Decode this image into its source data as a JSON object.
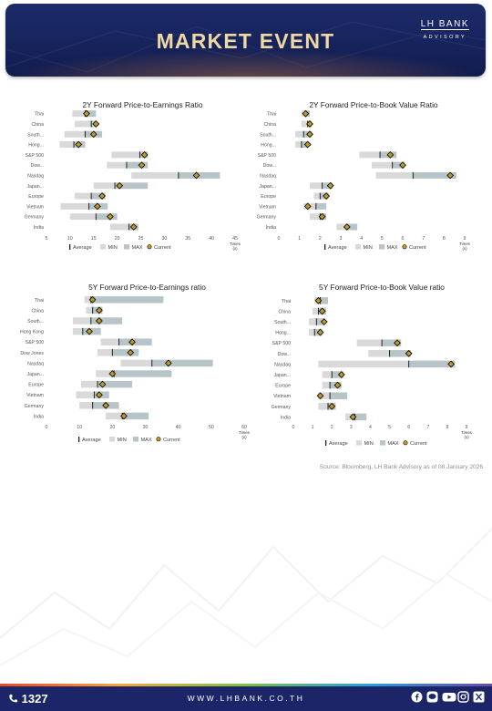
{
  "header": {
    "title": "MARKET EVENT",
    "brand": "LH BANK",
    "brand_sub": "ADVISORY",
    "brand_color": "#f0d9a0"
  },
  "legend": {
    "average": "Average",
    "min": "MIN",
    "max": "MAX",
    "current": "Current"
  },
  "colors": {
    "min": "#d9d9d9",
    "max": "#b7c5c9",
    "current": "#c49a24",
    "average": "#222222",
    "header_bg": "#16225a",
    "footer_bg": "#1b2567"
  },
  "chart_data": [
    {
      "type": "bar",
      "title": "2Y Forward Price-to-Earnings Ratio",
      "unit_label": [
        "Times",
        "(x)"
      ],
      "xlim": [
        5,
        45
      ],
      "xticks": [
        5,
        10,
        15,
        20,
        25,
        30,
        35,
        40,
        45
      ],
      "categories": [
        "Thai",
        "China",
        "South...",
        "Hong...",
        "S&P 500",
        "Dow...",
        "Nasdaq",
        "Japan...",
        "Europe",
        "Vietnam",
        "Germany",
        "India"
      ],
      "min": [
        10.5,
        11.0,
        8.8,
        7.8,
        18.8,
        17.8,
        23.0,
        15.0,
        11.0,
        8.0,
        10.0,
        18.5
      ],
      "average": [
        13.2,
        14.5,
        13.2,
        10.8,
        24.8,
        22.0,
        33.0,
        19.5,
        14.5,
        14.0,
        15.5,
        22.5
      ],
      "max": [
        15.5,
        15.5,
        16.8,
        13.2,
        26.5,
        26.5,
        41.8,
        26.5,
        17.5,
        18.0,
        20.0,
        24.5
      ],
      "current": [
        13.5,
        15.5,
        15.0,
        11.8,
        25.8,
        25.2,
        36.8,
        20.5,
        16.8,
        15.8,
        18.5,
        23.5
      ]
    },
    {
      "type": "bar",
      "title": "2Y Forward Price-to-Book Value Ratio",
      "unit_label": [
        "Times",
        "(x)"
      ],
      "xlim": [
        0,
        9
      ],
      "xticks": [
        0,
        1,
        2,
        3,
        4,
        5,
        6,
        7,
        8,
        9
      ],
      "categories": [
        "Thai",
        "China",
        "South...",
        "Hong...",
        "S&P 500",
        "Dow...",
        "Nasdaq",
        "Japan...",
        "Europe",
        "Vietnam",
        "Germany",
        "India"
      ],
      "min": [
        1.1,
        1.1,
        0.8,
        0.8,
        3.9,
        4.5,
        4.7,
        1.5,
        1.7,
        1.2,
        1.5,
        2.8
      ],
      "average": [
        1.3,
        1.4,
        1.2,
        1.1,
        4.9,
        5.5,
        6.5,
        2.1,
        2.0,
        1.8,
        2.0,
        3.3
      ],
      "max": [
        1.5,
        1.6,
        1.6,
        1.4,
        5.7,
        6.1,
        8.6,
        2.6,
        2.4,
        2.3,
        2.3,
        3.8
      ],
      "current": [
        1.3,
        1.5,
        1.5,
        1.4,
        5.4,
        6.0,
        8.3,
        2.5,
        2.3,
        1.4,
        2.1,
        3.3
      ]
    },
    {
      "type": "bar",
      "title": "5Y Forward Price-to-Earnings ratio",
      "unit_label": [
        "Times",
        "(x)"
      ],
      "xlim": [
        0,
        60
      ],
      "xticks": [
        0,
        10,
        20,
        30,
        40,
        50,
        60
      ],
      "categories": [
        "Thai",
        "China",
        "South...",
        "Hong Kong",
        "S&P 500",
        "Dow Jones",
        "Nasdaq",
        "Japan...",
        "Europe",
        "Vietnam",
        "Germany",
        "India"
      ],
      "min": [
        11.5,
        12.0,
        8.0,
        8.0,
        16.5,
        15.5,
        22.5,
        15.0,
        10.5,
        9.0,
        10.0,
        18.0
      ],
      "average": [
        13.5,
        14.0,
        13.5,
        11.0,
        22.0,
        20.0,
        32.0,
        20.5,
        15.5,
        14.5,
        14.0,
        23.0
      ],
      "max": [
        35.5,
        17.0,
        23.0,
        16.5,
        32.0,
        28.0,
        50.5,
        38.0,
        26.0,
        19.0,
        22.0,
        31.0
      ],
      "current": [
        14.0,
        16.0,
        16.0,
        13.0,
        26.0,
        25.5,
        37.0,
        20.0,
        17.0,
        16.0,
        18.0,
        23.5
      ]
    },
    {
      "type": "bar",
      "title": "5Y Forward Price-to-Book Value ratio",
      "unit_label": [
        "Times",
        "(x)"
      ],
      "xlim": [
        0,
        9
      ],
      "xticks": [
        0,
        1,
        2,
        3,
        4,
        5,
        6,
        7,
        8,
        9
      ],
      "categories": [
        "Thai",
        "China",
        "South...",
        "Hong...",
        "S&P 500",
        "Dow...",
        "Nasdaq",
        "Japan...",
        "Europe",
        "Vietnam",
        "Germany",
        "India"
      ],
      "min": [
        1.1,
        1.0,
        0.8,
        0.8,
        3.3,
        3.9,
        1.3,
        1.5,
        1.5,
        1.3,
        1.3,
        2.7
      ],
      "average": [
        1.4,
        1.3,
        1.2,
        1.1,
        4.6,
        5.0,
        6.0,
        2.0,
        1.9,
        1.9,
        1.8,
        3.2
      ],
      "max": [
        1.8,
        1.7,
        1.6,
        1.5,
        5.6,
        6.1,
        8.4,
        2.6,
        2.5,
        2.8,
        2.2,
        3.8
      ],
      "current": [
        1.3,
        1.5,
        1.6,
        1.4,
        5.4,
        6.0,
        8.2,
        2.5,
        2.3,
        1.4,
        2.0,
        3.1
      ]
    }
  ],
  "source": "Source: Bloomberg,  LH Bank Advisory  as of 08 January 2026",
  "footer": {
    "hotline": "1327",
    "website": "WWW.LHBANK.CO.TH",
    "social": [
      "facebook-icon",
      "line-icon",
      "youtube-icon",
      "instagram-icon",
      "x-icon"
    ]
  }
}
